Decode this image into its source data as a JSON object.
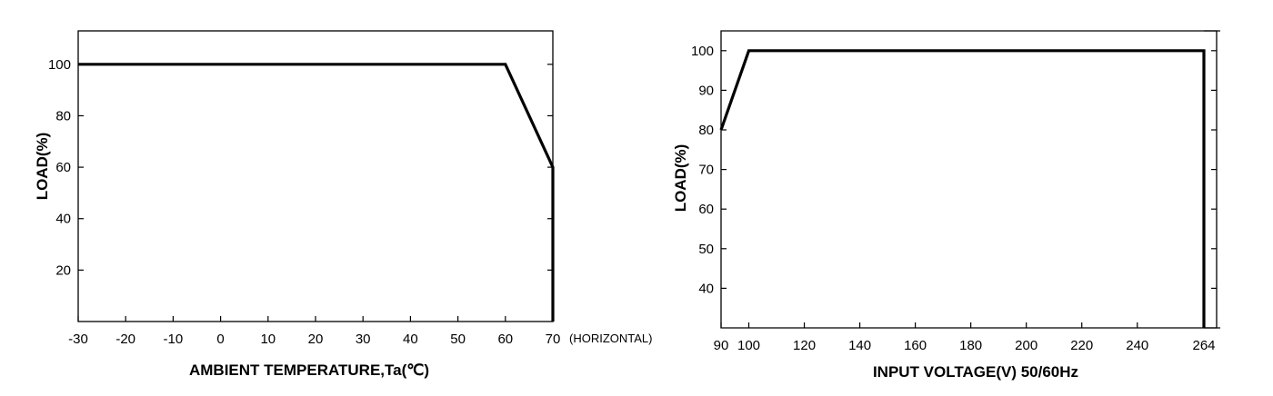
{
  "chart_data": [
    {
      "type": "line",
      "title": "",
      "xlabel": "AMBIENT TEMPERATURE,Ta(℃)",
      "ylabel": "LOAD(%)",
      "x_note": "(HORIZONTAL)",
      "xlim": [
        -30,
        70
      ],
      "ylim": [
        0,
        113
      ],
      "xticks": [
        -30,
        -20,
        -10,
        0,
        10,
        20,
        30,
        40,
        50,
        60,
        70
      ],
      "xtick_labels": [
        "-30",
        "-20",
        "-10",
        "0",
        "10",
        "20",
        "30",
        "40",
        "50",
        "60",
        "70"
      ],
      "yticks": [
        20,
        40,
        60,
        80,
        100
      ],
      "ytick_labels": [
        "20",
        "40",
        "60",
        "80",
        "100"
      ],
      "grid": false,
      "series": [
        {
          "x": [
            -30,
            60,
            70,
            70
          ],
          "y": [
            100,
            100,
            60,
            0
          ]
        }
      ]
    },
    {
      "type": "line",
      "title": "",
      "xlabel": "INPUT VOLTAGE(V)  50/60Hz",
      "ylabel": "LOAD(%)",
      "xlim": [
        90,
        264
      ],
      "ylim": [
        30,
        105
      ],
      "xticks": [
        90,
        100,
        120,
        140,
        160,
        180,
        200,
        220,
        240,
        264
      ],
      "xtick_labels": [
        "90",
        "100",
        "120",
        "140",
        "160",
        "180",
        "200",
        "220",
        "240",
        "264"
      ],
      "yticks": [
        40,
        50,
        60,
        70,
        80,
        90,
        100
      ],
      "ytick_labels": [
        "40",
        "50",
        "60",
        "70",
        "80",
        "90",
        "100"
      ],
      "grid": false,
      "series": [
        {
          "x": [
            90,
            100,
            264,
            264
          ],
          "y": [
            80,
            100,
            100,
            30
          ]
        }
      ]
    }
  ]
}
